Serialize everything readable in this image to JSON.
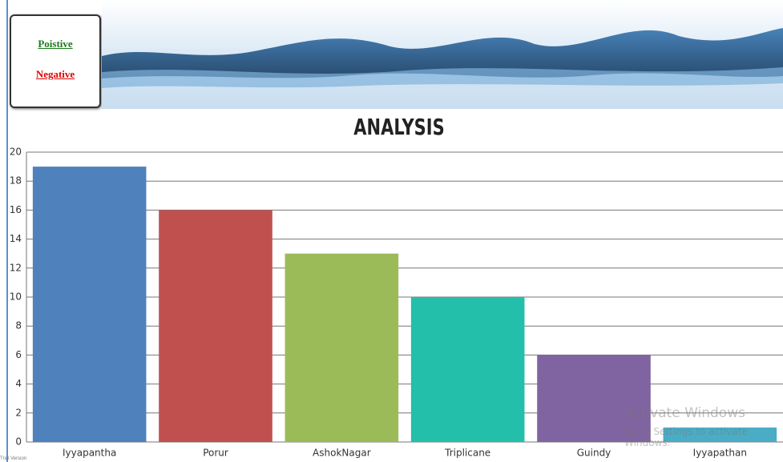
{
  "links": [
    "Poistive",
    "Negative"
  ],
  "chart_data": {
    "type": "bar",
    "title": "ANALYSIS",
    "categories": [
      "Iyyapantha",
      "Porur",
      "AshokNagar",
      "Triplicane",
      "Guindy",
      "Iyyapathan"
    ],
    "values": [
      19,
      16,
      13,
      10,
      6,
      1
    ],
    "colors": [
      "#4f81bc",
      "#c0504e",
      "#9bbb58",
      "#23bfaa",
      "#8064a1",
      "#4aacc5"
    ],
    "ylim": [
      0,
      20
    ],
    "yticks": [
      0,
      2,
      4,
      6,
      8,
      10,
      12,
      14,
      16,
      18,
      20
    ],
    "grid": true
  },
  "watermark": {
    "title": "Activate Windows",
    "text": "Go to Settings to activate Windows."
  },
  "footer": "Trial Version"
}
